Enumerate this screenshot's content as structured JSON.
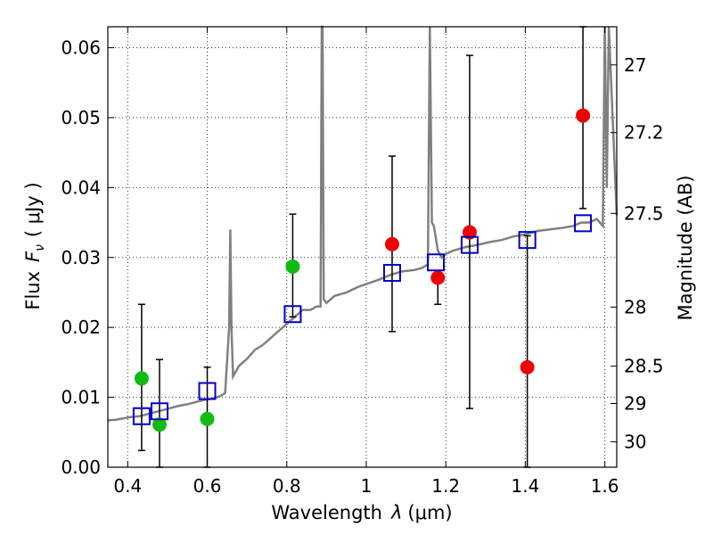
{
  "chart_data": {
    "type": "scatter",
    "title": "",
    "xlabel_prefix": "Wavelength",
    "xlabel_lambda": "λ",
    "xlabel_unit": "(μm)",
    "ylabel_prefix": "Flux",
    "ylabel_symbol": "F",
    "ylabel_sub": "ν",
    "ylabel_unit": "( μJy )",
    "y2label": "Magnitude (AB)",
    "xlim": [
      0.35,
      1.63
    ],
    "ylim": [
      0.0,
      0.063
    ],
    "grid": true,
    "x_ticks": [
      0.4,
      0.6,
      0.8,
      1.0,
      1.2,
      1.4,
      1.6
    ],
    "x_tick_labels": [
      "0.4",
      "0.6",
      "0.8",
      "1",
      "1.2",
      "1.4",
      "1.6"
    ],
    "y_ticks": [
      0.0,
      0.01,
      0.02,
      0.03,
      0.04,
      0.05,
      0.06
    ],
    "y_tick_labels": [
      "0.00",
      "0.01",
      "0.02",
      "0.03",
      "0.04",
      "0.05",
      "0.06"
    ],
    "mag_ticks": [
      27,
      27.2,
      27.5,
      28,
      28.5,
      29,
      30
    ],
    "mag_tick_labels": [
      "27",
      "27.2",
      "27.5",
      "28",
      "28.5",
      "29",
      "30"
    ],
    "colors": {
      "spectrum": "#808080",
      "green": "#11bb11",
      "red": "#ee0000",
      "model": "#0000cc",
      "errorbar": "#000000"
    },
    "spectrum": {
      "name": "model spectrum",
      "x": [
        0.35,
        0.37,
        0.39,
        0.41,
        0.43,
        0.45,
        0.47,
        0.49,
        0.51,
        0.53,
        0.55,
        0.57,
        0.59,
        0.61,
        0.63,
        0.645,
        0.655,
        0.658,
        0.661,
        0.665,
        0.68,
        0.7,
        0.72,
        0.74,
        0.76,
        0.78,
        0.8,
        0.82,
        0.84,
        0.86,
        0.875,
        0.885,
        0.888,
        0.89,
        0.893,
        0.9,
        0.92,
        0.95,
        0.98,
        1.0,
        1.03,
        1.06,
        1.09,
        1.12,
        1.14,
        1.155,
        1.16,
        1.165,
        1.17,
        1.18,
        1.19,
        1.2,
        1.22,
        1.25,
        1.28,
        1.31,
        1.34,
        1.37,
        1.4,
        1.43,
        1.46,
        1.49,
        1.52,
        1.54,
        1.56,
        1.58,
        1.595,
        1.6,
        1.605,
        1.61,
        1.63
      ],
      "y": [
        0.0067,
        0.0068,
        0.007,
        0.0072,
        0.0073,
        0.0076,
        0.0079,
        0.0082,
        0.0085,
        0.0088,
        0.009,
        0.0093,
        0.0096,
        0.0098,
        0.0101,
        0.0106,
        0.02,
        0.034,
        0.02,
        0.013,
        0.0145,
        0.0155,
        0.0168,
        0.0175,
        0.0185,
        0.0195,
        0.0205,
        0.0215,
        0.0225,
        0.0225,
        0.023,
        0.023,
        0.063,
        0.063,
        0.024,
        0.0235,
        0.0245,
        0.025,
        0.0258,
        0.0262,
        0.0268,
        0.0275,
        0.028,
        0.0282,
        0.0285,
        0.029,
        0.063,
        0.035,
        0.0345,
        0.031,
        0.03,
        0.0305,
        0.031,
        0.0315,
        0.0318,
        0.0322,
        0.0325,
        0.033,
        0.0333,
        0.0338,
        0.034,
        0.0342,
        0.0345,
        0.035,
        0.035,
        0.0355,
        0.0345,
        0.063,
        0.04,
        0.063,
        0.036
      ]
    },
    "series": [
      {
        "name": "green points",
        "x": [
          0.435,
          0.48,
          0.6,
          0.815
        ],
        "y": [
          0.0127,
          0.0061,
          0.0069,
          0.0287
        ],
        "yerr_low": [
          0.0103,
          0.0061,
          0.0069,
          0.0072
        ],
        "yerr_high": [
          0.0106,
          0.0093,
          0.0074,
          0.0075
        ]
      },
      {
        "name": "red points",
        "x": [
          1.065,
          1.18,
          1.26,
          1.405,
          1.545
        ],
        "y": [
          0.0319,
          0.0271,
          0.0336,
          0.0143,
          0.0503
        ],
        "yerr_low": [
          0.0125,
          0.0038,
          0.0252,
          0.0143,
          0.0133
        ],
        "yerr_high": [
          0.0126,
          0.0,
          0.0253,
          0.0188,
          0.014
        ]
      },
      {
        "name": "model squares",
        "x": [
          0.435,
          0.48,
          0.6,
          0.815,
          1.065,
          1.175,
          1.26,
          1.405,
          1.545
        ],
        "y": [
          0.0073,
          0.008,
          0.0109,
          0.0219,
          0.0278,
          0.0293,
          0.0318,
          0.0325,
          0.0349
        ]
      }
    ]
  }
}
